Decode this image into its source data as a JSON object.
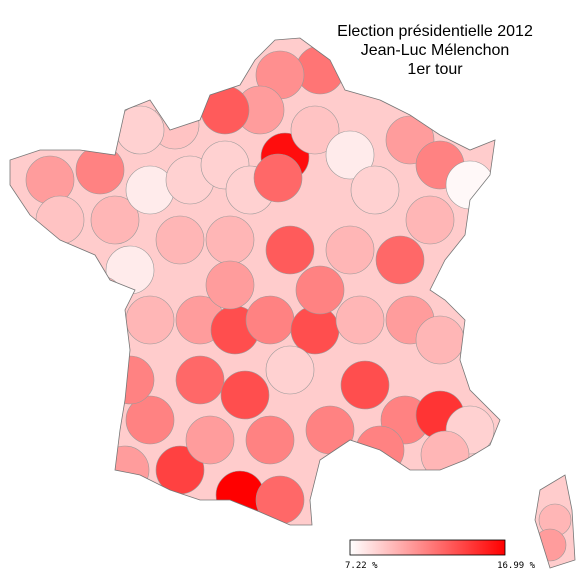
{
  "map": {
    "title_lines": [
      "Election présidentielle 2012",
      "Jean-Luc Mélenchon",
      "1er tour"
    ],
    "legend": {
      "min": {
        "value": 7.22,
        "label": "7.22 %"
      },
      "max": {
        "value": 16.99,
        "label": "16.99 %"
      }
    },
    "department_values": [
      12.5,
      11.5,
      11,
      13.5,
      9.5,
      9,
      12,
      11,
      9.5,
      10,
      8,
      9,
      9,
      9,
      16.5,
      13,
      9.5,
      8,
      9,
      11,
      12,
      7.5,
      10,
      13,
      10,
      13.5,
      10,
      10,
      8,
      10,
      11,
      14,
      12,
      14,
      10,
      11,
      10,
      13,
      14,
      9,
      14,
      12,
      15,
      9,
      10,
      12,
      14.5,
      16.99,
      13,
      11,
      12,
      12,
      12,
      11,
      10,
      11,
      12,
      11,
      10,
      12
    ]
  }
}
